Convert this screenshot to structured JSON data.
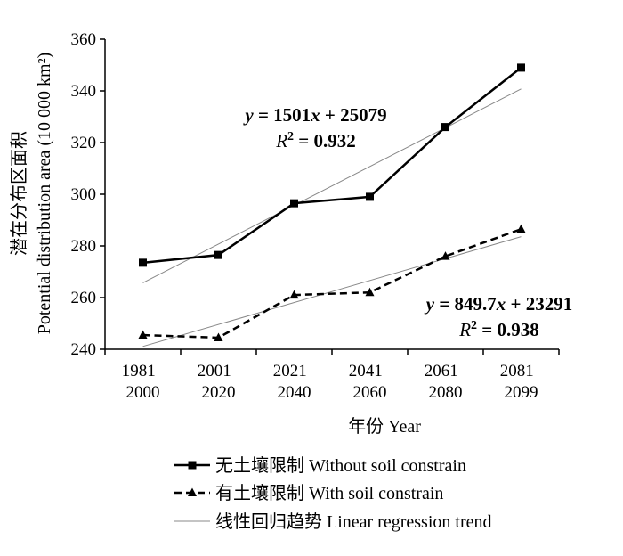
{
  "chart_data": {
    "type": "line",
    "xlabel": "年份 Year",
    "ylabel_cn": "潜在分布区面积",
    "ylabel_en": "Potential distribution area (10 000 km²)",
    "ylim": [
      240,
      360
    ],
    "yticks": [
      240,
      260,
      280,
      300,
      320,
      340,
      360
    ],
    "grid": false,
    "categories": [
      {
        "line1": "1981–",
        "line2": "2000"
      },
      {
        "line1": "2001–",
        "line2": "2020"
      },
      {
        "line1": "2021–",
        "line2": "2040"
      },
      {
        "line1": "2041–",
        "line2": "2060"
      },
      {
        "line1": "2061–",
        "line2": "2080"
      },
      {
        "line1": "2081–",
        "line2": "2099"
      }
    ],
    "series": [
      {
        "name": "无土壤限制 Without soil constrain",
        "marker": "square",
        "style": "solid",
        "color": "#000000",
        "values": [
          273.5,
          276.5,
          296.5,
          299,
          326,
          349
        ],
        "trend": {
          "start": 265.7,
          "slope": 15.01,
          "equation": "y = 1501x + 25079",
          "r2": "0.932"
        }
      },
      {
        "name": "有土壤限制 With soil constrain",
        "marker": "triangle",
        "style": "dashed",
        "color": "#000000",
        "values": [
          245.5,
          244.5,
          261,
          262,
          276,
          286.5
        ],
        "trend": {
          "start": 241.1,
          "slope": 8.497,
          "equation": "y = 849.7x + 23291",
          "r2": "0.938"
        }
      }
    ],
    "legend": {
      "placement": "bottom",
      "items": [
        {
          "label": "无土壤限制 Without soil constrain",
          "kind": "solid-square"
        },
        {
          "label": "有土壤限制 With soil constrain",
          "kind": "dashed-triangle"
        },
        {
          "label": "线性回归趋势 Linear regression trend",
          "kind": "thin-trend"
        }
      ]
    },
    "trend_color": "#888888"
  }
}
